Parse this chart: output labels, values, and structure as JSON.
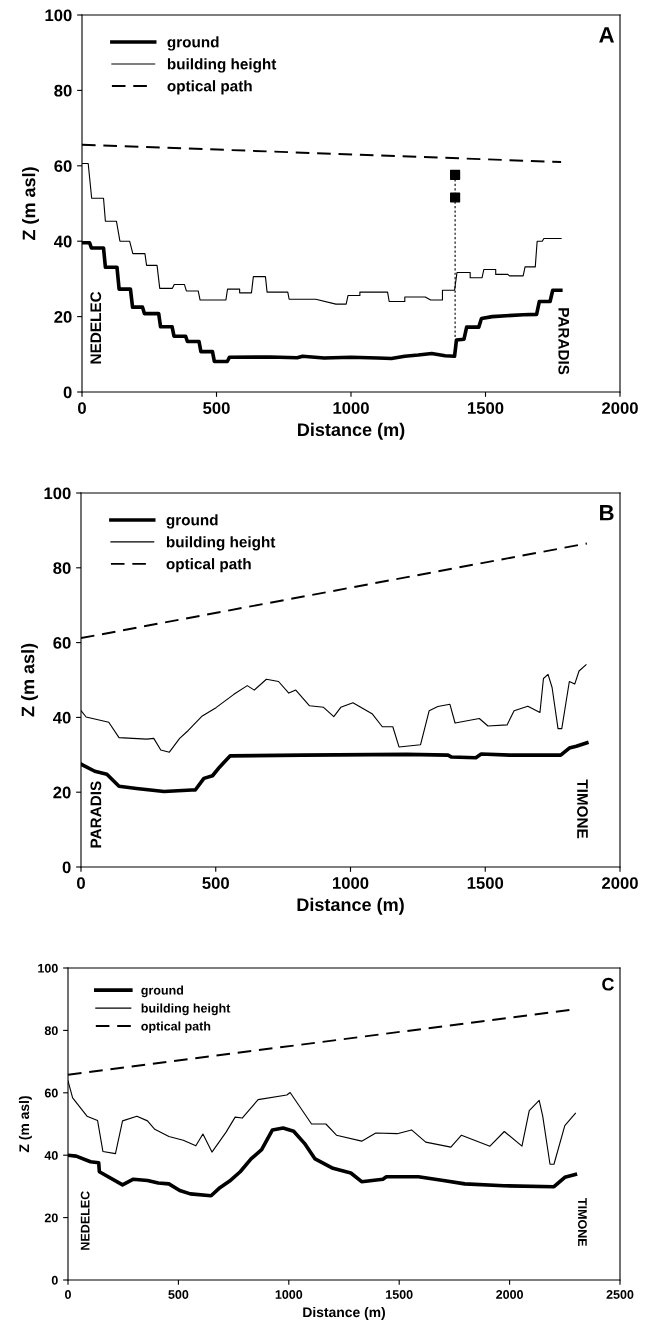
{
  "chart_data": [
    {
      "type": "line",
      "title": "A",
      "xlabel": "Distance (m)",
      "ylabel": "Z (m asl)",
      "xlim": [
        0,
        2000
      ],
      "xticks": [
        0,
        500,
        1000,
        1500,
        2000
      ],
      "ylim": [
        0,
        100
      ],
      "yticks": [
        0,
        20,
        40,
        60,
        80,
        100
      ],
      "legend": "top left",
      "grid": false,
      "series": [
        {
          "name": "ground",
          "color": "#000000",
          "line_style": "solid",
          "x": [
            0,
            28,
            35,
            80,
            87,
            130,
            138,
            180,
            188,
            225,
            232,
            285,
            292,
            335,
            342,
            385,
            392,
            435,
            442,
            485,
            492,
            540,
            548,
            700,
            800,
            820,
            900,
            1000,
            1100,
            1150,
            1200,
            1250,
            1300,
            1350,
            1385,
            1392,
            1420,
            1430,
            1475,
            1485,
            1525,
            1640,
            1690,
            1700,
            1740,
            1750,
            1780
          ],
          "values": [
            39.6,
            39.6,
            38.2,
            38.2,
            33.1,
            33.1,
            27.3,
            27.3,
            22.5,
            22.5,
            20.8,
            20.8,
            17.3,
            17.3,
            14.8,
            14.8,
            13.4,
            13.4,
            10.7,
            10.7,
            8.1,
            8.1,
            9.2,
            9.3,
            9.1,
            9.5,
            9.0,
            9.2,
            9.0,
            8.9,
            9.5,
            9.8,
            10.2,
            9.6,
            9.5,
            13.8,
            14.0,
            17.2,
            17.2,
            19.5,
            20.0,
            20.5,
            20.6,
            24.0,
            24.0,
            27.0,
            27.0
          ]
        },
        {
          "name": "building height",
          "color": "#000000",
          "line_style": "solid",
          "x": [
            0,
            23,
            36,
            80,
            87,
            128,
            141,
            177,
            189,
            234,
            240,
            279,
            289,
            336,
            343,
            381,
            388,
            432,
            439,
            535,
            541,
            586,
            586,
            630,
            637,
            682,
            688,
            765,
            770,
            869,
            944,
            982,
            989,
            1033,
            1033,
            1136,
            1142,
            1200,
            1200,
            1276,
            1296,
            1340,
            1340,
            1385,
            1394,
            1443,
            1443,
            1487,
            1494,
            1538,
            1538,
            1583,
            1589,
            1640,
            1647,
            1685,
            1692,
            1711,
            1717,
            1781
          ],
          "values": [
            60.6,
            60.6,
            51.4,
            51.4,
            45.3,
            45.3,
            40.0,
            40.0,
            36.7,
            36.7,
            33.6,
            33.6,
            27.5,
            27.5,
            28.5,
            28.5,
            26.8,
            26.8,
            24.4,
            24.4,
            27.3,
            27.3,
            26.3,
            26.3,
            30.6,
            30.6,
            26.5,
            26.5,
            24.6,
            24.6,
            23.3,
            23.3,
            25.6,
            25.6,
            26.5,
            26.5,
            24.0,
            24.0,
            25.2,
            25.2,
            24.4,
            24.4,
            27.0,
            27.0,
            31.7,
            31.7,
            30.3,
            30.3,
            32.5,
            32.5,
            31.2,
            31.2,
            30.8,
            30.8,
            33.2,
            33.2,
            40.0,
            40.0,
            40.7,
            40.7
          ]
        },
        {
          "name": "optical path",
          "color": "#000000",
          "line_style": "dashed",
          "x": [
            0,
            1781
          ],
          "values": [
            65.6,
            61.0
          ]
        },
        {
          "type": "line",
          "color": "#000000",
          "line_style": "dotted",
          "x": [
            1387,
            1387
          ],
          "values": [
            57.6,
            14.0
          ]
        },
        {
          "type": "scatter",
          "color": "#000000",
          "marker": "square",
          "x": [
            1387,
            1387
          ],
          "values": [
            57.6,
            51.6
          ]
        }
      ],
      "annotations": [
        "NEDELEC",
        "PARADIS"
      ]
    },
    {
      "type": "line",
      "title": "B",
      "xlabel": "Distance (m)",
      "ylabel": "Z (m asl)",
      "xlim": [
        0,
        2000
      ],
      "xticks": [
        0,
        500,
        1000,
        1500,
        2000
      ],
      "ylim": [
        0,
        100
      ],
      "yticks": [
        0,
        20,
        40,
        60,
        80,
        100
      ],
      "legend": "top left",
      "grid": false,
      "series": [
        {
          "name": "ground",
          "color": "#000000",
          "line_style": "solid",
          "x": [
            0,
            51,
            96,
            141,
            206,
            308,
            411,
            424,
            456,
            488,
            514,
            553,
            823,
            1208,
            1362,
            1375,
            1465,
            1485,
            1594,
            1780,
            1812,
            1838,
            1877
          ],
          "values": [
            27.5,
            25.6,
            24.8,
            21.6,
            21.0,
            20.2,
            20.6,
            20.6,
            23.7,
            24.4,
            26.7,
            29.7,
            29.9,
            30.1,
            29.9,
            29.4,
            29.2,
            30.2,
            29.9,
            29.9,
            31.8,
            32.3,
            33.2
          ]
        },
        {
          "name": "building height",
          "color": "#000000",
          "line_style": "solid",
          "x": [
            0,
            19,
            103,
            141,
            244,
            270,
            296,
            328,
            366,
            398,
            450,
            501,
            566,
            617,
            643,
            688,
            733,
            771,
            797,
            848,
            900,
            938,
            964,
            1009,
            1080,
            1118,
            1157,
            1180,
            1260,
            1292,
            1324,
            1369,
            1388,
            1478,
            1510,
            1581,
            1607,
            1658,
            1703,
            1716,
            1733,
            1748,
            1770,
            1784,
            1812,
            1832,
            1848,
            1874
          ],
          "values": [
            41.8,
            40.1,
            38.7,
            34.6,
            34.2,
            34.4,
            31.3,
            30.7,
            34.4,
            36.5,
            40.4,
            42.6,
            46.1,
            48.5,
            47.3,
            50.2,
            49.6,
            46.5,
            47.3,
            43.1,
            42.7,
            40.2,
            42.7,
            43.9,
            41.0,
            37.5,
            37.5,
            32.1,
            32.7,
            41.8,
            42.9,
            43.5,
            38.5,
            39.7,
            37.7,
            38.0,
            41.8,
            43.0,
            41.3,
            50.4,
            51.5,
            48.0,
            37.0,
            37.0,
            49.6,
            48.9,
            52.4,
            54.1
          ]
        },
        {
          "name": "optical path",
          "color": "#000000",
          "line_style": "dashed",
          "x": [
            0,
            1877
          ],
          "values": [
            61.2,
            86.5
          ]
        }
      ],
      "annotations": [
        "PARADIS",
        "TIMONE"
      ]
    },
    {
      "type": "line",
      "title": "C",
      "xlabel": "Distance (m)",
      "ylabel": "Z (m asl)",
      "xlim": [
        0,
        2500
      ],
      "xticks": [
        0,
        500,
        1000,
        1500,
        2000,
        2500
      ],
      "ylim": [
        0,
        100
      ],
      "yticks": [
        0,
        20,
        40,
        60,
        80,
        100
      ],
      "legend": "top left",
      "grid": false,
      "series": [
        {
          "name": "ground",
          "color": "#000000",
          "line_style": "solid",
          "x": [
            0,
            37,
            102,
            139,
            142,
            247,
            296,
            360,
            409,
            457,
            506,
            554,
            648,
            683,
            732,
            780,
            829,
            877,
            926,
            974,
            1022,
            1071,
            1119,
            1200,
            1281,
            1330,
            1426,
            1442,
            1587,
            1700,
            1797,
            1974,
            2201,
            2250,
            2298
          ],
          "values": [
            40.0,
            39.7,
            37.9,
            37.6,
            34.7,
            30.5,
            32.3,
            31.9,
            31.1,
            30.8,
            28.7,
            27.6,
            27.0,
            29.3,
            31.7,
            34.7,
            38.8,
            41.8,
            48.1,
            48.7,
            47.7,
            43.8,
            38.8,
            35.8,
            34.3,
            31.5,
            32.3,
            33.1,
            33.1,
            31.9,
            30.8,
            30.2,
            29.9,
            32.9,
            33.8
          ]
        },
        {
          "name": "building height",
          "color": "#000000",
          "line_style": "solid",
          "x": [
            0,
            21,
            86,
            134,
            158,
            215,
            247,
            312,
            360,
            393,
            457,
            522,
            579,
            611,
            652,
            716,
            757,
            789,
            861,
            991,
            1006,
            1103,
            1168,
            1216,
            1330,
            1394,
            1491,
            1556,
            1620,
            1734,
            1782,
            1911,
            1976,
            2056,
            2089,
            2134,
            2150,
            2183,
            2201,
            2250,
            2298
          ],
          "values": [
            63.8,
            58.4,
            52.5,
            51.1,
            41.2,
            40.5,
            51.0,
            52.5,
            51.0,
            48.3,
            46.0,
            44.8,
            43.0,
            46.8,
            41.0,
            47.4,
            52.2,
            51.9,
            57.8,
            59.3,
            60.1,
            50.0,
            50.0,
            46.4,
            44.5,
            47.1,
            46.9,
            48.1,
            44.2,
            42.6,
            46.4,
            42.9,
            47.6,
            42.9,
            54.3,
            57.6,
            52.5,
            37.1,
            37.1,
            49.5,
            53.4
          ]
        },
        {
          "name": "optical path",
          "color": "#000000",
          "line_style": "dashed",
          "x": [
            0,
            2278
          ],
          "values": [
            65.8,
            86.6
          ]
        }
      ],
      "annotations": [
        "NEDELEC",
        "TIMONE"
      ]
    }
  ]
}
